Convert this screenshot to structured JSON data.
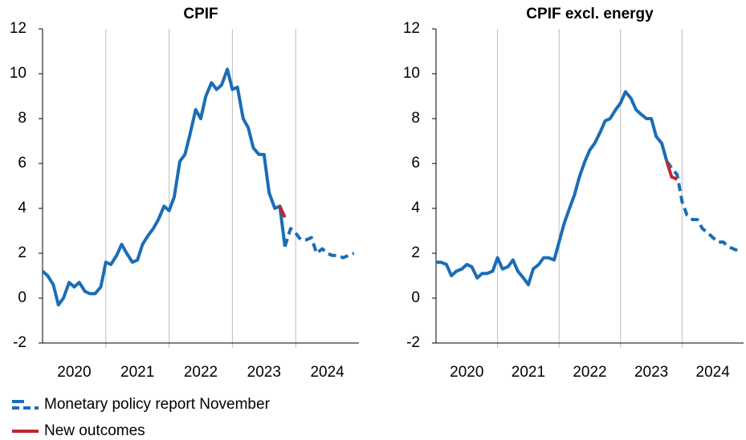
{
  "chart_data": [
    {
      "type": "line",
      "title": "CPIF",
      "x": [
        2020,
        2020.08,
        2020.17,
        2020.25,
        2020.33,
        2020.42,
        2020.5,
        2020.58,
        2020.67,
        2020.75,
        2020.83,
        2020.92,
        2021,
        2021.08,
        2021.17,
        2021.25,
        2021.33,
        2021.42,
        2021.5,
        2021.58,
        2021.67,
        2021.75,
        2021.83,
        2021.92,
        2022,
        2022.08,
        2022.17,
        2022.25,
        2022.33,
        2022.42,
        2022.5,
        2022.58,
        2022.67,
        2022.75,
        2022.83,
        2022.92,
        2023,
        2023.08,
        2023.17,
        2023.25,
        2023.33,
        2023.42,
        2023.5,
        2023.58,
        2023.67,
        2023.75,
        2023.83,
        2023.92,
        2024,
        2024.08,
        2024.17,
        2024.25,
        2024.33,
        2024.42,
        2024.5,
        2024.58,
        2024.67,
        2024.75,
        2024.83,
        2024.92
      ],
      "series": [
        {
          "name": "Monetary policy report November",
          "color": "#1b6db5",
          "values": [
            1.2,
            1.0,
            0.6,
            -0.3,
            0.0,
            0.7,
            0.5,
            0.7,
            0.3,
            0.2,
            0.2,
            0.5,
            1.6,
            1.5,
            1.9,
            2.4,
            2.0,
            1.6,
            1.7,
            2.4,
            2.8,
            3.1,
            3.5,
            4.1,
            3.9,
            4.5,
            6.1,
            6.4,
            7.3,
            8.4,
            8.0,
            9.0,
            9.6,
            9.3,
            9.5,
            10.2,
            9.3,
            9.4,
            8.0,
            7.6,
            6.7,
            6.4,
            6.4,
            4.7,
            4.0,
            4.1,
            2.3,
            null,
            null,
            null,
            null,
            null,
            null,
            null,
            null,
            null,
            null,
            null,
            null,
            null
          ]
        },
        {
          "color": "#1b6db5",
          "dash": true,
          "values": [
            null,
            null,
            null,
            null,
            null,
            null,
            null,
            null,
            null,
            null,
            null,
            null,
            null,
            null,
            null,
            null,
            null,
            null,
            null,
            null,
            null,
            null,
            null,
            null,
            null,
            null,
            null,
            null,
            null,
            null,
            null,
            null,
            null,
            null,
            null,
            null,
            null,
            null,
            null,
            null,
            null,
            null,
            null,
            null,
            null,
            null,
            2.3,
            3.1,
            2.9,
            2.6,
            2.6,
            2.7,
            2.0,
            2.2,
            2.0,
            1.9,
            1.9,
            1.8,
            1.9,
            2.0
          ]
        },
        {
          "name": "New outcomes",
          "color": "#c0272d",
          "values": [
            null,
            null,
            null,
            null,
            null,
            null,
            null,
            null,
            null,
            null,
            null,
            null,
            null,
            null,
            null,
            null,
            null,
            null,
            null,
            null,
            null,
            null,
            null,
            null,
            null,
            null,
            null,
            null,
            null,
            null,
            null,
            null,
            null,
            null,
            null,
            null,
            null,
            null,
            null,
            null,
            null,
            null,
            null,
            null,
            null,
            4.1,
            3.6,
            null,
            null,
            null,
            null,
            null,
            null,
            null,
            null,
            null,
            null,
            null,
            null,
            null
          ]
        }
      ],
      "xlim": [
        2020,
        2025
      ],
      "xticks": [
        {
          "value": 2020.5,
          "label": "2020"
        },
        {
          "value": 2021.5,
          "label": "2021"
        },
        {
          "value": 2022.5,
          "label": "2022"
        },
        {
          "value": 2023.5,
          "label": "2023"
        },
        {
          "value": 2024.5,
          "label": "2024"
        }
      ],
      "xgrid": [
        2021,
        2022,
        2023,
        2024
      ],
      "ylim": [
        -2,
        12
      ],
      "yticks": [
        -2,
        0,
        2,
        4,
        6,
        8,
        10,
        12
      ]
    },
    {
      "type": "line",
      "title": "CPIF excl. energy",
      "x": [
        2020,
        2020.08,
        2020.17,
        2020.25,
        2020.33,
        2020.42,
        2020.5,
        2020.58,
        2020.67,
        2020.75,
        2020.83,
        2020.92,
        2021,
        2021.08,
        2021.17,
        2021.25,
        2021.33,
        2021.42,
        2021.5,
        2021.58,
        2021.67,
        2021.75,
        2021.83,
        2021.92,
        2022,
        2022.08,
        2022.17,
        2022.25,
        2022.33,
        2022.42,
        2022.5,
        2022.58,
        2022.67,
        2022.75,
        2022.83,
        2022.92,
        2023,
        2023.08,
        2023.17,
        2023.25,
        2023.33,
        2023.42,
        2023.5,
        2023.58,
        2023.67,
        2023.75,
        2023.83,
        2023.92,
        2024,
        2024.08,
        2024.17,
        2024.25,
        2024.33,
        2024.42,
        2024.5,
        2024.58,
        2024.67,
        2024.75,
        2024.83,
        2024.92
      ],
      "series": [
        {
          "color": "#1b6db5",
          "values": [
            1.6,
            1.6,
            1.5,
            1.0,
            1.2,
            1.3,
            1.5,
            1.4,
            0.9,
            1.1,
            1.1,
            1.2,
            1.8,
            1.3,
            1.4,
            1.7,
            1.2,
            0.9,
            0.6,
            1.3,
            1.5,
            1.8,
            1.8,
            1.7,
            2.5,
            3.3,
            4.0,
            4.6,
            5.4,
            6.1,
            6.6,
            6.9,
            7.4,
            7.9,
            8.0,
            8.4,
            8.7,
            9.2,
            8.9,
            8.4,
            8.2,
            8.0,
            8.0,
            7.2,
            6.9,
            6.1,
            null,
            null,
            null,
            null,
            null,
            null,
            null,
            null,
            null,
            null,
            null,
            null,
            null,
            null
          ]
        },
        {
          "color": "#1b6db5",
          "dash": true,
          "values": [
            null,
            null,
            null,
            null,
            null,
            null,
            null,
            null,
            null,
            null,
            null,
            null,
            null,
            null,
            null,
            null,
            null,
            null,
            null,
            null,
            null,
            null,
            null,
            null,
            null,
            null,
            null,
            null,
            null,
            null,
            null,
            null,
            null,
            null,
            null,
            null,
            null,
            null,
            null,
            null,
            null,
            null,
            null,
            null,
            null,
            6.1,
            5.8,
            5.5,
            4.3,
            3.7,
            3.5,
            3.5,
            3.1,
            2.9,
            2.7,
            2.5,
            2.5,
            2.3,
            2.2,
            2.1
          ]
        },
        {
          "color": "#c0272d",
          "values": [
            null,
            null,
            null,
            null,
            null,
            null,
            null,
            null,
            null,
            null,
            null,
            null,
            null,
            null,
            null,
            null,
            null,
            null,
            null,
            null,
            null,
            null,
            null,
            null,
            null,
            null,
            null,
            null,
            null,
            null,
            null,
            null,
            null,
            null,
            null,
            null,
            null,
            null,
            null,
            null,
            null,
            null,
            null,
            null,
            null,
            6.1,
            5.4,
            5.3,
            null,
            null,
            null,
            null,
            null,
            null,
            null,
            null,
            null,
            null,
            null,
            null
          ]
        }
      ],
      "xlim": [
        2020,
        2025
      ],
      "xticks": [
        {
          "value": 2020.5,
          "label": "2020"
        },
        {
          "value": 2021.5,
          "label": "2021"
        },
        {
          "value": 2022.5,
          "label": "2022"
        },
        {
          "value": 2023.5,
          "label": "2023"
        },
        {
          "value": 2024.5,
          "label": "2024"
        }
      ],
      "xgrid": [
        2021,
        2022,
        2023,
        2024
      ],
      "ylim": [
        -2,
        12
      ],
      "yticks": [
        -2,
        0,
        2,
        4,
        6,
        8,
        10,
        12
      ]
    }
  ]
}
